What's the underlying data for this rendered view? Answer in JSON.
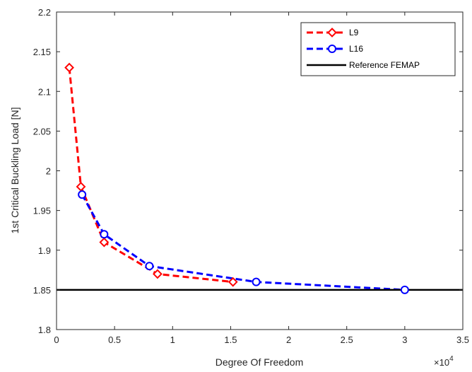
{
  "chart_data": {
    "type": "line",
    "title": "",
    "xlabel": "Degree Of Freedom",
    "ylabel": "1st Critical Buckling Load [N]",
    "x_multiplier_base": "×10",
    "x_multiplier_exp": "4",
    "xlim": [
      0,
      3.5
    ],
    "ylim": [
      1.8,
      2.2
    ],
    "xticks": [
      0,
      0.5,
      1,
      1.5,
      2,
      2.5,
      3,
      3.5
    ],
    "xtick_labels": [
      "0",
      "0.5",
      "1",
      "1.5",
      "2",
      "2.5",
      "3",
      "3.5"
    ],
    "yticks": [
      1.8,
      1.85,
      1.9,
      1.95,
      2.0,
      2.05,
      2.1,
      2.15,
      2.2
    ],
    "ytick_labels": [
      "1.8",
      "1.85",
      "1.9",
      "1.95",
      "2",
      "2.05",
      "2.1",
      "2.15",
      "2.2"
    ],
    "grid": false,
    "legend_position": "top-right",
    "series": [
      {
        "name": "L9",
        "color": "#ff0000",
        "marker": "diamond",
        "line": "dashed",
        "x": [
          0.11,
          0.21,
          0.41,
          0.87,
          1.52
        ],
        "y": [
          2.13,
          1.98,
          1.91,
          1.87,
          1.86
        ]
      },
      {
        "name": "L16",
        "color": "#0000ff",
        "marker": "circle",
        "line": "dashed",
        "x": [
          0.22,
          0.41,
          0.8,
          1.72,
          3.0
        ],
        "y": [
          1.97,
          1.92,
          1.88,
          1.86,
          1.85
        ]
      },
      {
        "name": "Reference FEMAP",
        "color": "#000000",
        "marker": "none",
        "line": "solid",
        "x": [
          0,
          3.5
        ],
        "y": [
          1.85,
          1.85
        ]
      }
    ]
  }
}
